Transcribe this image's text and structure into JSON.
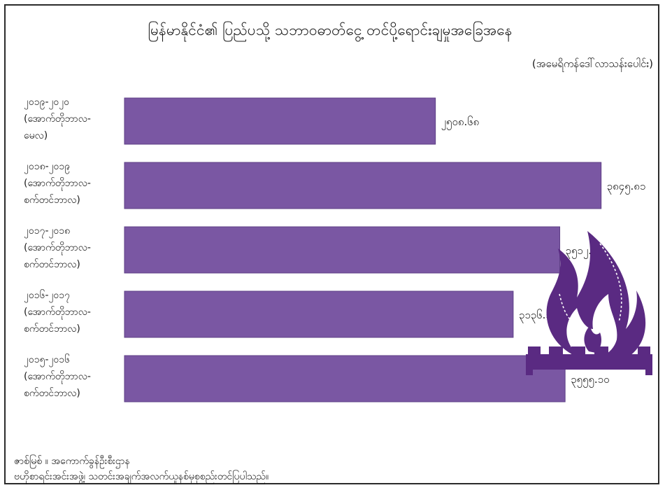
{
  "chart_data": {
    "type": "bar",
    "orientation": "horizontal",
    "title": "မြန်မာနိုင်ငံ၏ ပြည်ပသို့ သဘာဝဓာတ်ငွေ့ တင်ပို့ရောင်းချမှုအခြေအနေ",
    "unit_label": "(အမေရိကန်ဒေါ်လာသန်းပေါင်း)",
    "categories": [
      [
        "၂၀၁၉-၂၀၂၀",
        "(အောက်တိုဘာလ-",
        "မေလ)"
      ],
      [
        "၂၀၁၈-၂၀၁၉",
        "(အောက်တိုဘာလ-",
        "စက်တင်ဘာလ)"
      ],
      [
        "၂၀၁၇-၂၀၁၈",
        "(အောက်တိုဘာလ-",
        "စက်တင်ဘာလ)"
      ],
      [
        "၂၀၁၆-၂၀၁၇",
        "(အောက်တိုဘာလ-",
        "စက်တင်ဘာလ)"
      ],
      [
        "၂၀၁၅-၂၀၁၆",
        "(အောက်တိုဘာလ-",
        "စက်တင်ဘာလ)"
      ]
    ],
    "values": [
      2508.68,
      3845.81,
      3512.12,
      3136.35,
      3555.1
    ],
    "value_labels": [
      "၂၅၀၈.၆၈",
      "၃၈၄၅.၈၁",
      "၃၅၁၂.၁၂",
      "၃၁၃၆.၃၅",
      "၃၅၅၅.၁၀"
    ],
    "xlim": [
      0,
      4000
    ],
    "bar_color": "#7a57a3",
    "bar_edge_color": "#5d3f86",
    "grid": false,
    "legend": "none"
  },
  "icon": {
    "name": "gas-flame-icon",
    "color": "#5a2a82"
  },
  "source": {
    "line1": "ဇာစ်မြစ် ။ အကောက်ခွန်ဦးစီးဌာန",
    "line2": "ဗဟိုစာရင်းအင်းအဖွဲ့၊ သတင်းအချက်အလက်ယူနစ်မှစုစည်းတင်ပြပါသည်။"
  }
}
